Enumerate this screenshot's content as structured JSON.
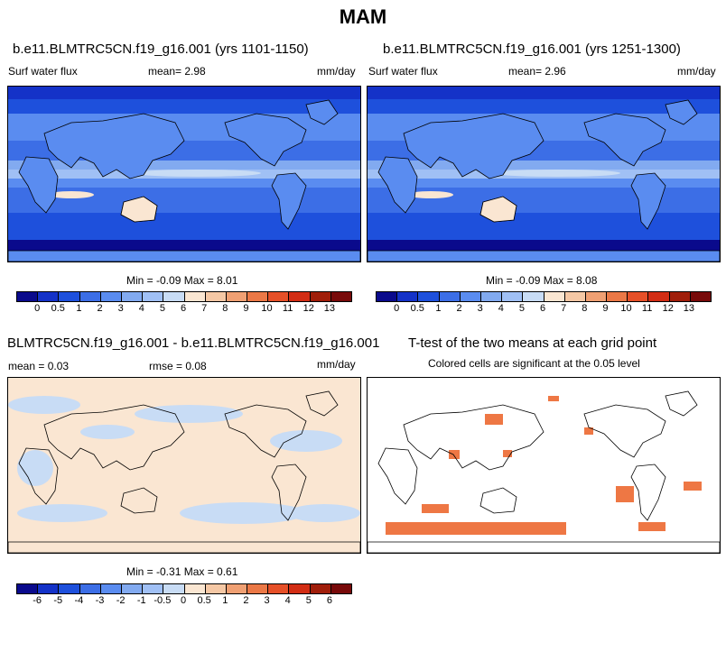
{
  "title": "MAM",
  "colors_abs": [
    "#0a0a8c",
    "#1432c8",
    "#1e50dc",
    "#3c6ee6",
    "#5a8cf0",
    "#82aaf0",
    "#a0c0f5",
    "#c8dcf5",
    "#fae6d2",
    "#f5c8a5",
    "#f0a073",
    "#eb7846",
    "#e65028",
    "#d22d14",
    "#a01e0a",
    "#780a0a"
  ],
  "colors_diff": [
    "#0a0a8c",
    "#1432c8",
    "#1e50dc",
    "#3c6ee6",
    "#5a8cf0",
    "#82aaf0",
    "#a0c0f5",
    "#c8dcf5",
    "#fae6d2",
    "#f5c8a5",
    "#f0a073",
    "#eb7846",
    "#e65028",
    "#d22d14",
    "#a01e0a",
    "#780a0a"
  ],
  "panel1": {
    "title": "b.e11.BLMTRC5CN.f19_g16.001 (yrs 1101-1150)",
    "left_label": "Surf water flux",
    "mean": "mean=   2.98",
    "units": "mm/day",
    "minmax": "Min =  -0.09 Max =   8.01",
    "ticks": [
      "0",
      "0.5",
      "1",
      "2",
      "3",
      "4",
      "5",
      "6",
      "7",
      "8",
      "9",
      "10",
      "11",
      "12",
      "13"
    ]
  },
  "panel2": {
    "title": "b.e11.BLMTRC5CN.f19_g16.001 (yrs 1251-1300)",
    "left_label": "Surf water flux",
    "mean": "mean=   2.96",
    "units": "mm/day",
    "minmax": "Min =  -0.09 Max =   8.08",
    "ticks": [
      "0",
      "0.5",
      "1",
      "2",
      "3",
      "4",
      "5",
      "6",
      "7",
      "8",
      "9",
      "10",
      "11",
      "12",
      "13"
    ]
  },
  "panel3": {
    "title": "BLMTRC5CN.f19_g16.001 - b.e11.BLMTRC5CN.f19_g16.001",
    "mean": "mean =   0.03",
    "rmse": "rmse =   0.08",
    "units": "mm/day",
    "minmax": "Min =  -0.31 Max =   0.61",
    "ticks": [
      "-6",
      "-5",
      "-4",
      "-3",
      "-2",
      "-1",
      "-0.5",
      "0",
      "0.5",
      "1",
      "2",
      "3",
      "4",
      "5",
      "6"
    ]
  },
  "panel4": {
    "title": "T-test of the two means at each grid point",
    "subtitle": "Colored cells are significant at the 0.05 level",
    "sig_color": "#ee7744"
  }
}
